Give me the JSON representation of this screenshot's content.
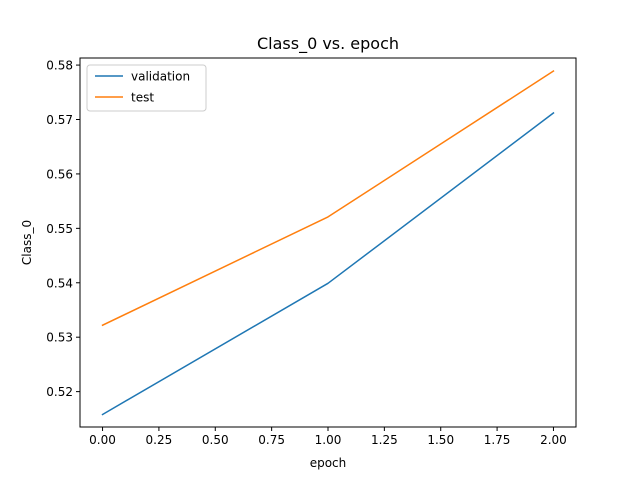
{
  "chart_data": {
    "type": "line",
    "title": "Class_0 vs. epoch",
    "xlabel": "epoch",
    "ylabel": "Class_0",
    "xlim": [
      -0.1,
      2.1
    ],
    "ylim": [
      0.5135,
      0.5813
    ],
    "x_ticks": [
      "0.00",
      "0.25",
      "0.50",
      "0.75",
      "1.00",
      "1.25",
      "1.50",
      "1.75",
      "2.00"
    ],
    "y_ticks": [
      "0.52",
      "0.53",
      "0.54",
      "0.55",
      "0.56",
      "0.57",
      "0.58"
    ],
    "x": [
      0,
      1,
      2
    ],
    "series": [
      {
        "name": "validation",
        "color": "#1f77b4",
        "values": [
          0.5158,
          0.5399,
          0.5712
        ]
      },
      {
        "name": "test",
        "color": "#ff7f0e",
        "values": [
          0.5322,
          0.5521,
          0.5789
        ]
      }
    ],
    "legend": "top-left",
    "grid": false
  }
}
